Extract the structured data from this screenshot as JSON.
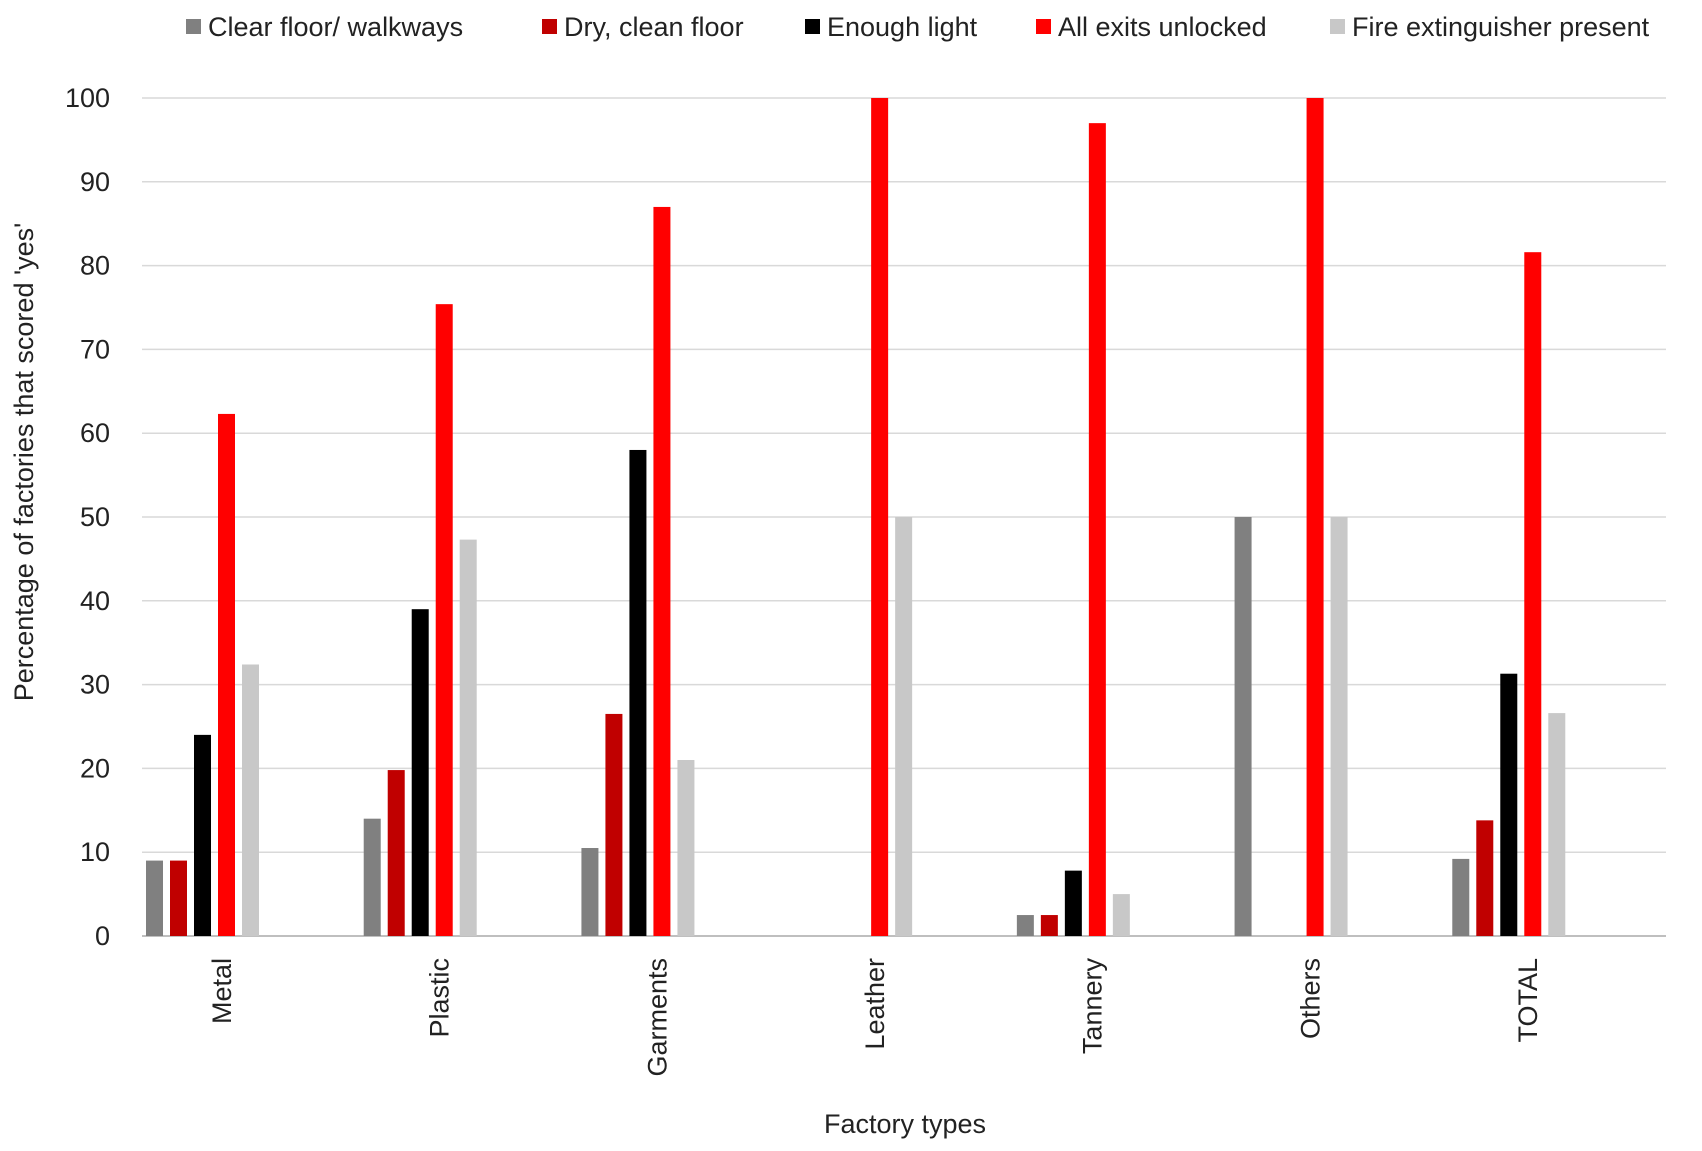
{
  "chart_data": {
    "type": "bar",
    "title": "",
    "xlabel": "Factory types",
    "ylabel": "Percentage of factories that scored 'yes'",
    "ylim": [
      0,
      100
    ],
    "yticks": [
      0,
      10,
      20,
      30,
      40,
      50,
      60,
      70,
      80,
      90,
      100
    ],
    "grid": true,
    "legend_position": "top",
    "categories": [
      "Metal",
      "Plastic",
      "Garments",
      "Leather",
      "Tannery",
      "Others",
      "TOTAL"
    ],
    "series": [
      {
        "name": "Clear floor/ walkways",
        "color": "#808080",
        "values": [
          9,
          14,
          10.5,
          0,
          2.5,
          50,
          9.2
        ]
      },
      {
        "name": "Dry, clean floor",
        "color": "#C00000",
        "values": [
          9,
          19.8,
          26.5,
          0,
          2.5,
          0,
          13.8
        ]
      },
      {
        "name": "Enough light",
        "color": "#000000",
        "values": [
          24,
          39,
          58,
          0,
          7.8,
          0,
          31.3
        ]
      },
      {
        "name": "All exits unlocked",
        "color": "#FF0000",
        "values": [
          62.3,
          75.4,
          87,
          100,
          97,
          100,
          81.6
        ]
      },
      {
        "name": "Fire extinguisher present",
        "color": "#C8C8C8",
        "values": [
          32.4,
          47.3,
          21,
          50,
          5,
          50,
          26.6
        ]
      }
    ]
  }
}
